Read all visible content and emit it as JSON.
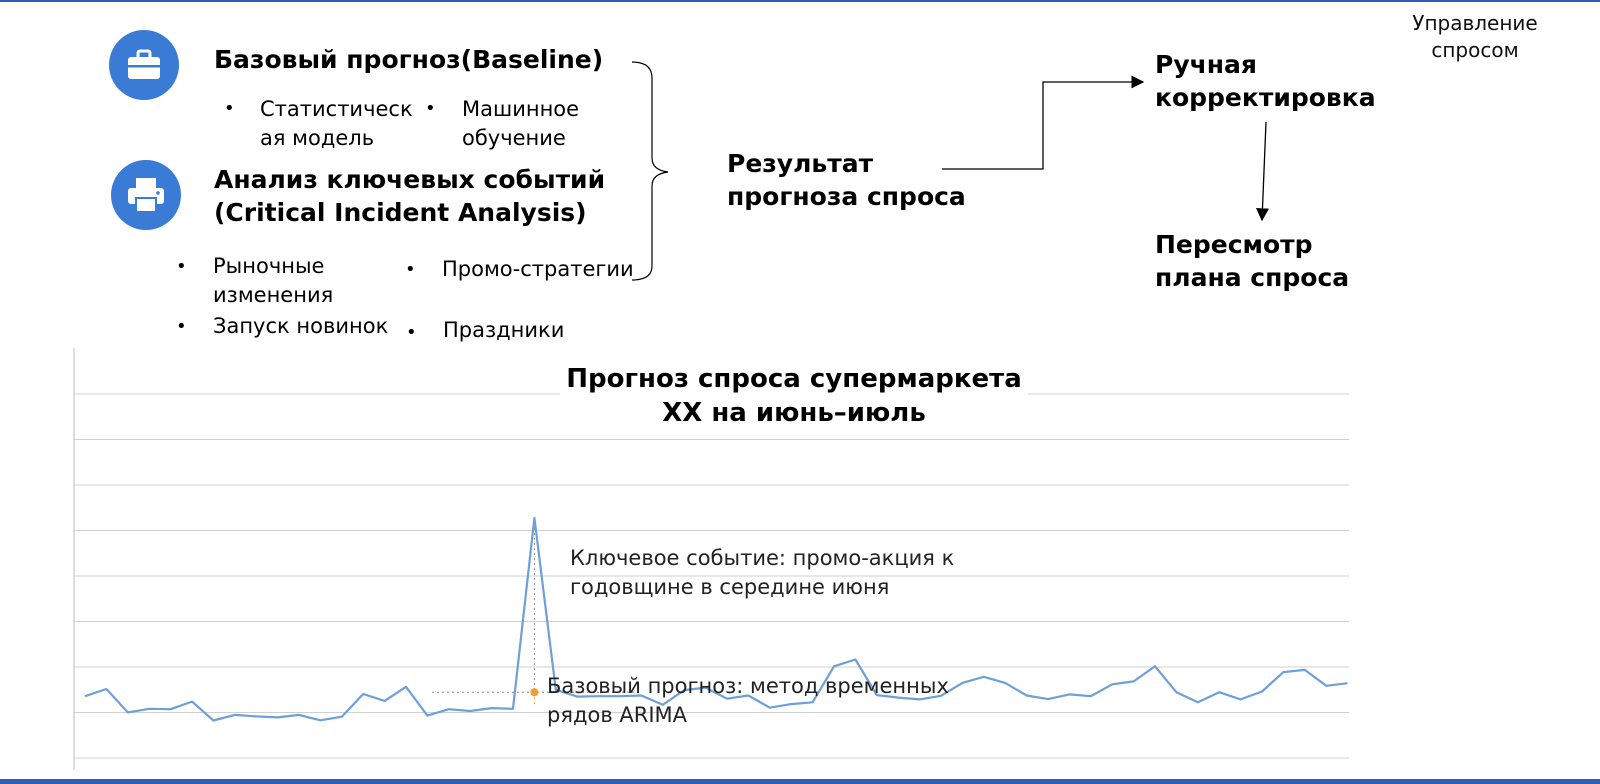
{
  "corner_title": "Управление\nспросом",
  "baseline": {
    "heading": "Базовый прогноз(Baseline)",
    "icon": "briefcase-icon",
    "items": [
      "Статистическ\nая модель",
      "Машинное\nобучение"
    ]
  },
  "cia": {
    "heading_line1": "Анализ ключевых событий",
    "heading_line2": "(Critical Incident Analysis)",
    "icon": "printer-icon",
    "items": [
      "Рыночные\nизменения",
      "Промо-стратегии",
      "Запуск новинок",
      "Праздники"
    ]
  },
  "flow": {
    "result": "Результат\nпрогноза спроса",
    "manual": "Ручная\nкорректировка",
    "revision": "Пересмотр\nплана спроса"
  },
  "colors": {
    "accent": "#3a7bd5",
    "line": "#6f9fd8",
    "marker": "#f0a030",
    "frame": "#2f5cb8"
  },
  "chart_data": {
    "type": "line",
    "title": "Прогноз спроса супермаркета\nXX на июнь–июль",
    "xlabel": "",
    "ylabel": "",
    "grid": true,
    "series": [
      {
        "name": "",
        "values": [
          41,
          45,
          32,
          34,
          33.8,
          38,
          27.5,
          30.6,
          29.8,
          29.2,
          30.6,
          27.6,
          29.6,
          42.2,
          38.4,
          46.2,
          30.2,
          33.8,
          32.8,
          34.4,
          34,
          140,
          44.6,
          40.8,
          41,
          41,
          41.4,
          36.2,
          44.4,
          45.8,
          39.6,
          41.4,
          34.6,
          36.6,
          37.6,
          57.6,
          61.4,
          41.6,
          40.2,
          39.2,
          41.2,
          48.4,
          51.8,
          48.4,
          41.4,
          39.4,
          42,
          41,
          47.6,
          49.2,
          57.6,
          43.2,
          37.6,
          43.2,
          39.2,
          43.6,
          54.4,
          55.6,
          46.8,
          48.2
        ]
      }
    ],
    "annotations": [
      {
        "text": "Ключевое событие: промо-акция к\nгодовщине в середине июня",
        "point_index": 21
      },
      {
        "text": "Базовый прогноз: метод временных\nрядов ARIMA",
        "point_index": 21,
        "value": 43.2
      }
    ]
  }
}
